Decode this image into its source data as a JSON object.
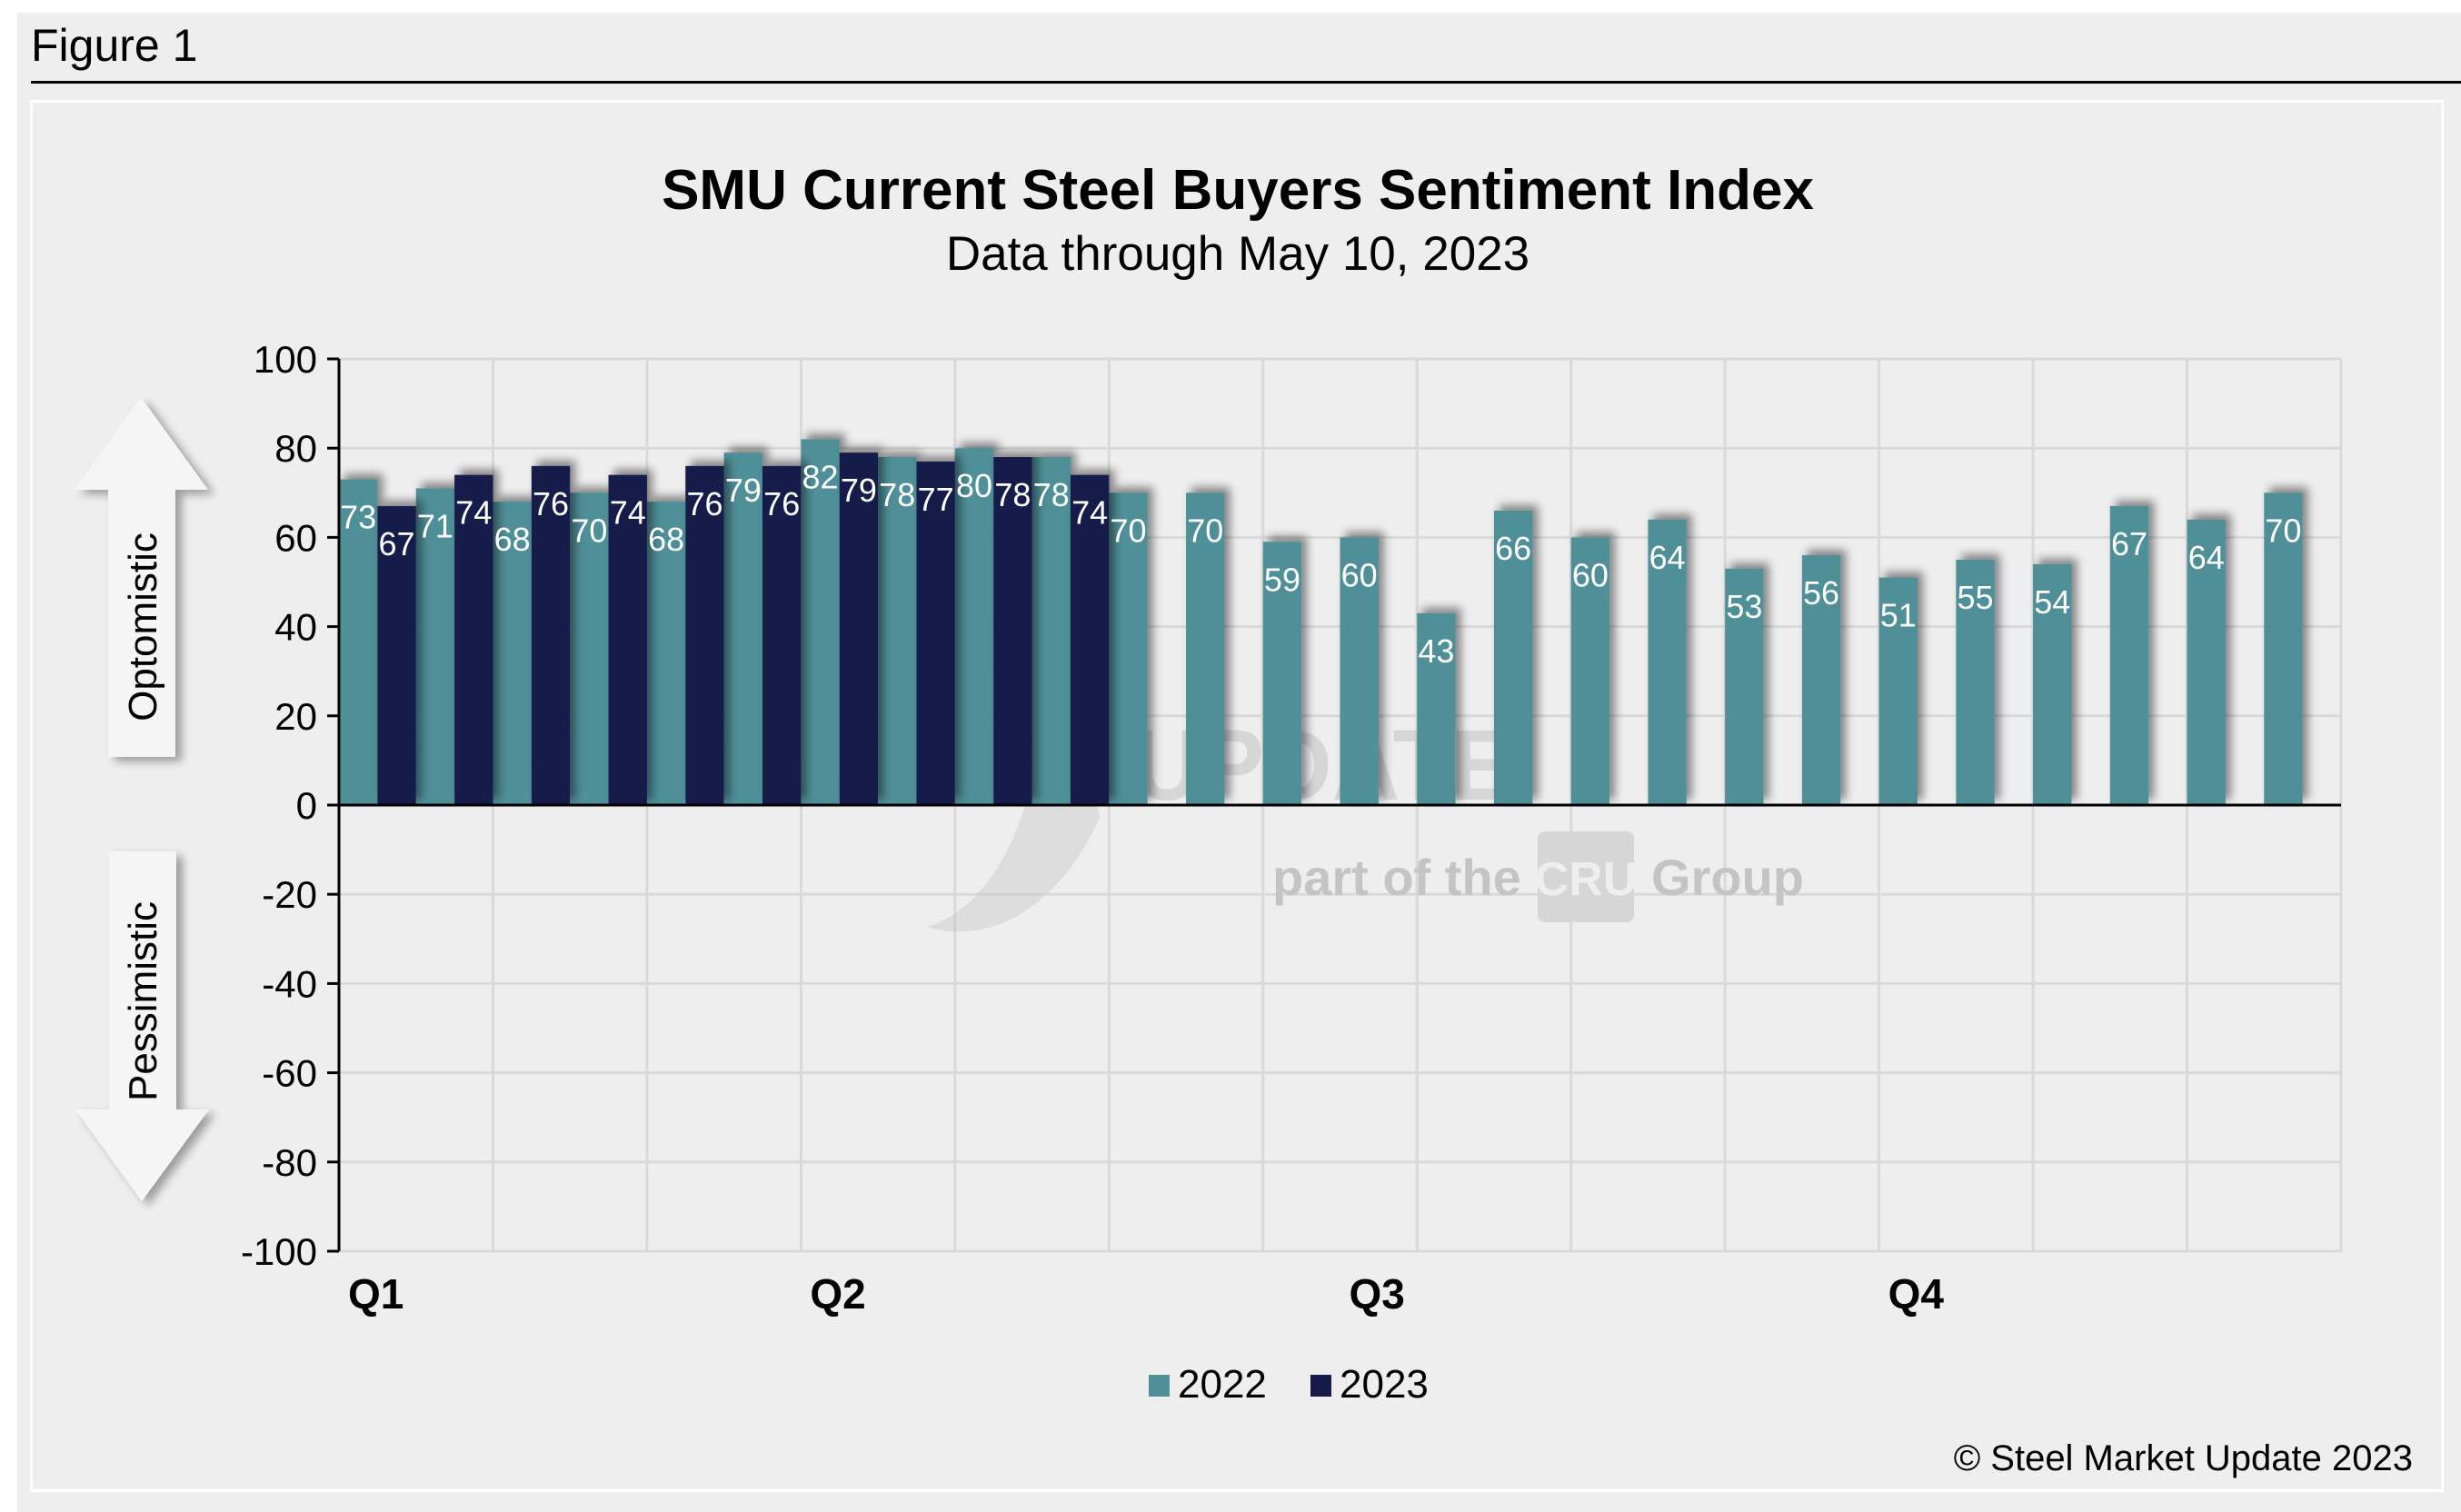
{
  "figure_label": "Figure 1",
  "copyright": "© Steel Market Update 2023",
  "watermark": {
    "brand": "STEEL MARKET UPDATE",
    "tagline_pre": "part of the",
    "tagline_logo": "CRU",
    "tagline_post": "Group"
  },
  "side_arrows": {
    "up_label": "Optomistic",
    "down_label": "Pessimistic"
  },
  "colors": {
    "2022": "#508f98",
    "2023": "#161a48",
    "background": "#eeeeee",
    "grid": "#d9d9d9"
  },
  "chart_data": {
    "type": "bar",
    "title": "SMU Current Steel Buyers Sentiment Index",
    "subtitle": "Data through May 10, 2023",
    "xlabel": "",
    "ylabel": "",
    "ylim": [
      -100,
      100
    ],
    "yticks": [
      100,
      80,
      60,
      40,
      20,
      0,
      -20,
      -40,
      -60,
      -80,
      -100
    ],
    "grid": true,
    "legend_position": "bottom-center",
    "quarter_labels": [
      {
        "label": "Q1",
        "slot": 0
      },
      {
        "label": "Q2",
        "slot": 6
      },
      {
        "label": "Q3",
        "slot": 13
      },
      {
        "label": "Q4",
        "slot": 20
      }
    ],
    "num_slots": 26,
    "series": [
      {
        "name": "2022",
        "values": [
          73,
          71,
          68,
          70,
          68,
          79,
          82,
          78,
          80,
          78,
          70,
          70,
          59,
          60,
          43,
          66,
          60,
          64,
          53,
          56,
          51,
          55,
          54,
          67,
          64,
          70
        ]
      },
      {
        "name": "2023",
        "values": [
          67,
          74,
          76,
          74,
          76,
          76,
          79,
          77,
          78,
          74
        ]
      }
    ]
  }
}
